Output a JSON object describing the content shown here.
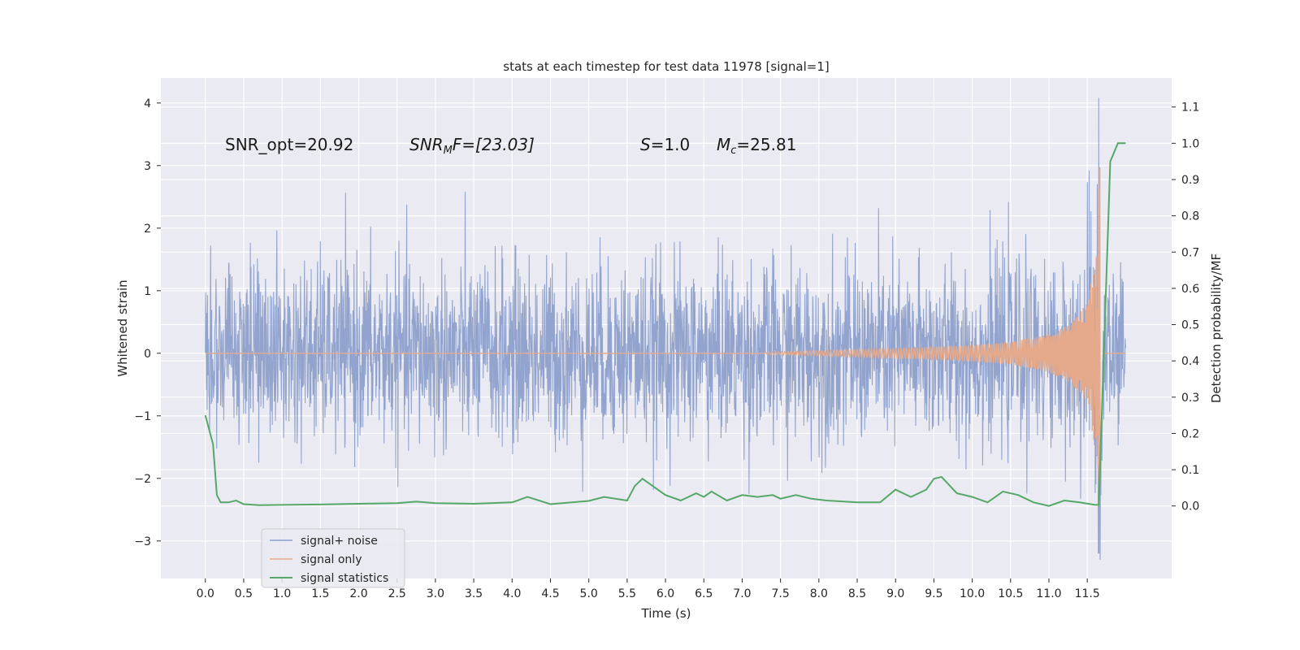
{
  "chart_data": {
    "type": "line",
    "title": "stats at each timestep for test data 11978 [signal=1]",
    "xlabel": "Time (s)",
    "ylabel": "Whitened strain",
    "ylabel_right": "Detection probability/MF",
    "xlim": [
      -0.58,
      12.6
    ],
    "ylim": [
      -3.6,
      4.4
    ],
    "ylim_right": [
      -0.2,
      1.18
    ],
    "x_ticks": [
      0.0,
      0.5,
      1.0,
      1.5,
      2.0,
      2.5,
      3.0,
      3.5,
      4.0,
      4.5,
      5.0,
      5.5,
      6.0,
      6.5,
      7.0,
      7.5,
      8.0,
      8.5,
      9.0,
      9.5,
      10.0,
      10.5,
      11.0,
      11.5
    ],
    "x_tick_labels": [
      "0.0",
      "0.5",
      "1.0",
      "1.5",
      "2.0",
      "2.5",
      "3.0",
      "3.5",
      "4.0",
      "4.5",
      "5.0",
      "5.5",
      "6.0",
      "6.5",
      "7.0",
      "7.5",
      "8.0",
      "8.5",
      "9.0",
      "9.5",
      "10.0",
      "10.5",
      "11.0",
      "11.5"
    ],
    "y_ticks": [
      -3,
      -2,
      -1,
      0,
      1,
      2,
      3,
      4
    ],
    "y_tick_labels": [
      "−3",
      "−2",
      "−1",
      "0",
      "1",
      "2",
      "3",
      "4"
    ],
    "y_ticks_right": [
      0.0,
      0.1,
      0.2,
      0.3,
      0.4,
      0.5,
      0.6,
      0.7,
      0.8,
      0.9,
      1.0,
      1.1
    ],
    "y_tick_labels_right": [
      "0.0",
      "0.1",
      "0.2",
      "0.3",
      "0.4",
      "0.5",
      "0.6",
      "0.7",
      "0.8",
      "0.9",
      "1.0",
      "1.1"
    ],
    "grid": true,
    "legend_position": "lower-left",
    "series": [
      {
        "name": "signal+ noise",
        "axis": "left",
        "color": "#8da0cb",
        "description": "noisy whitened strain, amplitude ~ ±1 with spikes up to ±2.5; burst near 11.65 s",
        "peak": {
          "x": 11.65,
          "max": 4.08,
          "min": -3.2
        }
      },
      {
        "name": "signal only",
        "axis": "left",
        "color": "#e5a98b",
        "description": "chirp signal, amplitude grows from 0 at 7.3 s to peak ~3.3 at 11.67 s, then 0",
        "x": [
          7.3,
          8.0,
          8.5,
          9.0,
          9.5,
          10.0,
          10.5,
          11.0,
          11.3,
          11.5,
          11.6,
          11.67,
          11.72
        ],
        "amplitude": [
          0.02,
          0.04,
          0.06,
          0.08,
          0.1,
          0.13,
          0.18,
          0.3,
          0.48,
          0.8,
          1.5,
          3.3,
          0
        ]
      },
      {
        "name": "signal statistics",
        "axis": "right",
        "color": "#55a868",
        "x": [
          0.0,
          0.05,
          0.1,
          0.15,
          0.2,
          0.3,
          0.4,
          0.5,
          0.7,
          1.0,
          1.5,
          2.0,
          2.5,
          2.75,
          3.0,
          3.5,
          4.0,
          4.2,
          4.5,
          5.0,
          5.2,
          5.5,
          5.6,
          5.7,
          6.0,
          6.2,
          6.4,
          6.5,
          6.6,
          6.8,
          7.0,
          7.2,
          7.4,
          7.5,
          7.7,
          7.9,
          8.1,
          8.5,
          8.8,
          9.0,
          9.2,
          9.4,
          9.5,
          9.6,
          9.8,
          10.0,
          10.2,
          10.4,
          10.6,
          10.8,
          11.0,
          11.2,
          11.4,
          11.6,
          11.65,
          11.8,
          11.9,
          12.0
        ],
        "y": [
          0.25,
          0.21,
          0.17,
          0.03,
          0.01,
          0.01,
          0.015,
          0.005,
          0.002,
          0.003,
          0.004,
          0.006,
          0.008,
          0.012,
          0.008,
          0.006,
          0.01,
          0.025,
          0.005,
          0.014,
          0.025,
          0.015,
          0.055,
          0.075,
          0.03,
          0.015,
          0.035,
          0.025,
          0.04,
          0.015,
          0.03,
          0.025,
          0.03,
          0.02,
          0.03,
          0.02,
          0.015,
          0.01,
          0.01,
          0.045,
          0.025,
          0.045,
          0.075,
          0.08,
          0.035,
          0.025,
          0.01,
          0.04,
          0.03,
          0.01,
          0.0,
          0.015,
          0.01,
          0.003,
          0.003,
          0.95,
          1.0,
          1.0
        ]
      }
    ],
    "annotations": {
      "snr_opt": "SNR_opt=20.92",
      "snr_mf_prefix": "SNR",
      "snr_mf_sub": "M",
      "snr_mf_suffix": "F=[23.03]",
      "s_var": "S",
      "s_value": "=1.0",
      "mc_var": "M",
      "mc_sub": "c",
      "mc_value": "=25.81"
    }
  }
}
